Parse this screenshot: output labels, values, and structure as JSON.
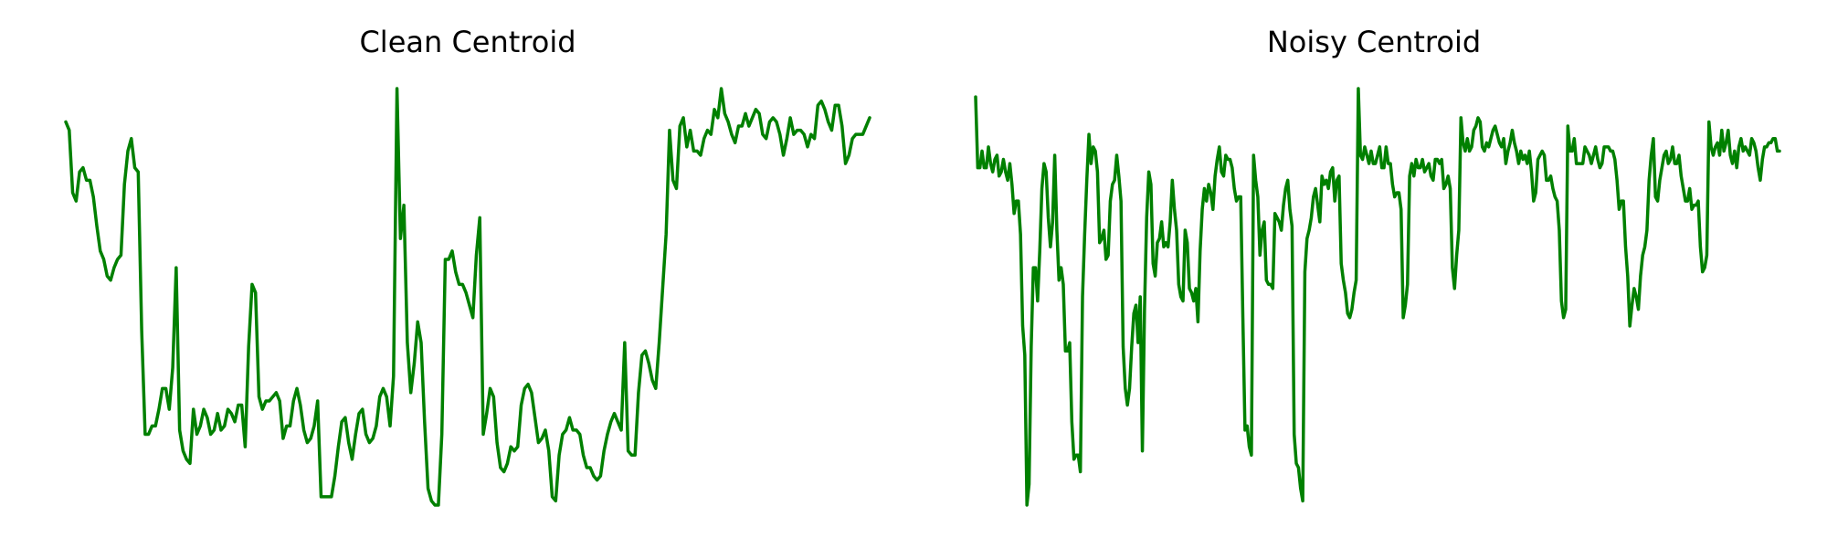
{
  "chart_data": [
    {
      "type": "line",
      "title": "Clean Centroid",
      "xlabel": "",
      "ylabel": "",
      "axes_visible": false,
      "grid": false,
      "line_color": "#008000",
      "ylim": [
        0,
        1
      ],
      "y": [
        0.92,
        0.9,
        0.75,
        0.73,
        0.8,
        0.81,
        0.78,
        0.78,
        0.74,
        0.67,
        0.61,
        0.59,
        0.55,
        0.54,
        0.57,
        0.59,
        0.6,
        0.77,
        0.85,
        0.88,
        0.81,
        0.8,
        0.42,
        0.17,
        0.17,
        0.19,
        0.19,
        0.23,
        0.28,
        0.28,
        0.23,
        0.33,
        0.57,
        0.18,
        0.13,
        0.11,
        0.1,
        0.23,
        0.17,
        0.19,
        0.23,
        0.21,
        0.17,
        0.18,
        0.22,
        0.18,
        0.19,
        0.23,
        0.22,
        0.2,
        0.24,
        0.24,
        0.14,
        0.38,
        0.53,
        0.51,
        0.26,
        0.23,
        0.25,
        0.25,
        0.26,
        0.27,
        0.25,
        0.16,
        0.19,
        0.19,
        0.25,
        0.28,
        0.24,
        0.18,
        0.15,
        0.16,
        0.19,
        0.25,
        0.02,
        0.02,
        0.02,
        0.02,
        0.07,
        0.14,
        0.2,
        0.21,
        0.15,
        0.11,
        0.17,
        0.22,
        0.23,
        0.17,
        0.15,
        0.16,
        0.19,
        0.26,
        0.28,
        0.26,
        0.19,
        0.31,
        1.0,
        0.64,
        0.72,
        0.39,
        0.27,
        0.34,
        0.44,
        0.39,
        0.2,
        0.04,
        0.01,
        0.0,
        0.0,
        0.17,
        0.59,
        0.59,
        0.61,
        0.56,
        0.53,
        0.53,
        0.51,
        0.48,
        0.45,
        0.6,
        0.69,
        0.17,
        0.22,
        0.28,
        0.26,
        0.15,
        0.09,
        0.08,
        0.1,
        0.14,
        0.13,
        0.14,
        0.24,
        0.28,
        0.29,
        0.27,
        0.21,
        0.15,
        0.16,
        0.18,
        0.13,
        0.02,
        0.01,
        0.12,
        0.17,
        0.18,
        0.21,
        0.18,
        0.18,
        0.17,
        0.12,
        0.09,
        0.09,
        0.07,
        0.06,
        0.07,
        0.13,
        0.17,
        0.2,
        0.22,
        0.2,
        0.18,
        0.39,
        0.13,
        0.12,
        0.12,
        0.27,
        0.36,
        0.37,
        0.34,
        0.3,
        0.28,
        0.39,
        0.52,
        0.65,
        0.9,
        0.78,
        0.76,
        0.91,
        0.93,
        0.86,
        0.9,
        0.85,
        0.85,
        0.84,
        0.88,
        0.9,
        0.89,
        0.95,
        0.93,
        1.0,
        0.94,
        0.92,
        0.89,
        0.87,
        0.91,
        0.91,
        0.94,
        0.91,
        0.93,
        0.95,
        0.94,
        0.89,
        0.88,
        0.92,
        0.93,
        0.92,
        0.89,
        0.84,
        0.88,
        0.93,
        0.89,
        0.9,
        0.9,
        0.89,
        0.86,
        0.89,
        0.88,
        0.96,
        0.97,
        0.95,
        0.92,
        0.9,
        0.96,
        0.96,
        0.91,
        0.82,
        0.84,
        0.88,
        0.89,
        0.89,
        0.89,
        0.91,
        0.93
      ]
    },
    {
      "type": "line",
      "title": "Noisy Centroid",
      "xlabel": "",
      "ylabel": "",
      "axes_visible": false,
      "grid": false,
      "line_color": "#008000",
      "ylim": [
        0,
        1
      ],
      "y": [
        0.98,
        0.81,
        0.81,
        0.85,
        0.81,
        0.81,
        0.86,
        0.82,
        0.8,
        0.83,
        0.84,
        0.79,
        0.8,
        0.83,
        0.8,
        0.78,
        0.82,
        0.77,
        0.7,
        0.73,
        0.73,
        0.65,
        0.43,
        0.36,
        0.0,
        0.05,
        0.38,
        0.57,
        0.57,
        0.49,
        0.61,
        0.76,
        0.82,
        0.8,
        0.69,
        0.62,
        0.68,
        0.84,
        0.66,
        0.54,
        0.57,
        0.53,
        0.37,
        0.37,
        0.39,
        0.2,
        0.11,
        0.12,
        0.12,
        0.08,
        0.5,
        0.65,
        0.78,
        0.89,
        0.82,
        0.86,
        0.85,
        0.8,
        0.63,
        0.64,
        0.66,
        0.59,
        0.6,
        0.73,
        0.77,
        0.78,
        0.84,
        0.79,
        0.73,
        0.38,
        0.28,
        0.24,
        0.28,
        0.38,
        0.46,
        0.48,
        0.39,
        0.5,
        0.13,
        0.47,
        0.69,
        0.8,
        0.77,
        0.58,
        0.55,
        0.63,
        0.64,
        0.68,
        0.62,
        0.63,
        0.62,
        0.68,
        0.78,
        0.71,
        0.66,
        0.53,
        0.5,
        0.49,
        0.66,
        0.63,
        0.52,
        0.51,
        0.49,
        0.52,
        0.44,
        0.61,
        0.71,
        0.76,
        0.73,
        0.77,
        0.75,
        0.71,
        0.79,
        0.83,
        0.86,
        0.8,
        0.79,
        0.84,
        0.83,
        0.83,
        0.81,
        0.76,
        0.73,
        0.74,
        0.74,
        0.45,
        0.18,
        0.19,
        0.14,
        0.12,
        0.84,
        0.78,
        0.74,
        0.6,
        0.66,
        0.68,
        0.54,
        0.53,
        0.53,
        0.52,
        0.7,
        0.69,
        0.68,
        0.66,
        0.72,
        0.76,
        0.78,
        0.71,
        0.67,
        0.17,
        0.1,
        0.09,
        0.04,
        0.01,
        0.56,
        0.64,
        0.66,
        0.69,
        0.74,
        0.76,
        0.72,
        0.68,
        0.79,
        0.77,
        0.78,
        0.76,
        0.8,
        0.81,
        0.73,
        0.78,
        0.79,
        0.58,
        0.54,
        0.51,
        0.46,
        0.45,
        0.47,
        0.51,
        0.54,
        1.0,
        0.84,
        0.83,
        0.86,
        0.84,
        0.82,
        0.85,
        0.82,
        0.82,
        0.84,
        0.86,
        0.81,
        0.81,
        0.86,
        0.82,
        0.82,
        0.77,
        0.74,
        0.75,
        0.75,
        0.71,
        0.45,
        0.48,
        0.53,
        0.79,
        0.82,
        0.79,
        0.83,
        0.81,
        0.81,
        0.83,
        0.8,
        0.81,
        0.82,
        0.79,
        0.78,
        0.83,
        0.83,
        0.82,
        0.83,
        0.76,
        0.77,
        0.79,
        0.76,
        0.57,
        0.52,
        0.6,
        0.66,
        0.93,
        0.87,
        0.85,
        0.88,
        0.85,
        0.86,
        0.9,
        0.91,
        0.93,
        0.92,
        0.86,
        0.85,
        0.87,
        0.86,
        0.88,
        0.9,
        0.91,
        0.89,
        0.87,
        0.86,
        0.88,
        0.82,
        0.85,
        0.87,
        0.9,
        0.87,
        0.85,
        0.82,
        0.85,
        0.83,
        0.84,
        0.82,
        0.85,
        0.8,
        0.73,
        0.75,
        0.83,
        0.84,
        0.85,
        0.84,
        0.78,
        0.78,
        0.79,
        0.76,
        0.74,
        0.73,
        0.66,
        0.49,
        0.45,
        0.47,
        0.91,
        0.85,
        0.85,
        0.88,
        0.82,
        0.82,
        0.82,
        0.82,
        0.86,
        0.85,
        0.84,
        0.82,
        0.84,
        0.86,
        0.83,
        0.81,
        0.82,
        0.86,
        0.86,
        0.86,
        0.85,
        0.85,
        0.83,
        0.78,
        0.71,
        0.73,
        0.73,
        0.62,
        0.55,
        0.43,
        0.48,
        0.52,
        0.5,
        0.47,
        0.55,
        0.6,
        0.62,
        0.66,
        0.78,
        0.84,
        0.88,
        0.74,
        0.73,
        0.78,
        0.81,
        0.84,
        0.85,
        0.82,
        0.83,
        0.86,
        0.82,
        0.82,
        0.84,
        0.79,
        0.76,
        0.73,
        0.73,
        0.76,
        0.71,
        0.72,
        0.72,
        0.73,
        0.62,
        0.56,
        0.57,
        0.6,
        0.92,
        0.86,
        0.84,
        0.86,
        0.87,
        0.84,
        0.9,
        0.85,
        0.87,
        0.9,
        0.84,
        0.82,
        0.85,
        0.81,
        0.86,
        0.88,
        0.85,
        0.86,
        0.85,
        0.84,
        0.88,
        0.87,
        0.85,
        0.81,
        0.78,
        0.83,
        0.86,
        0.86,
        0.87,
        0.87,
        0.88,
        0.88,
        0.85,
        0.85
      ]
    }
  ]
}
